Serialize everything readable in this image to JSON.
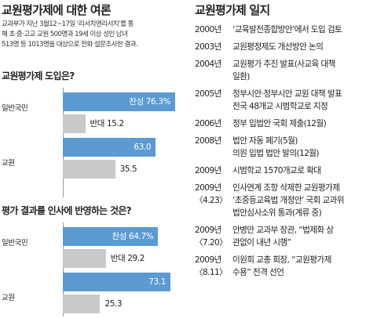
{
  "title": "교원평가제에 대한 여론",
  "intro_lines": [
    "교과부가 지난 3월12~17일 ‘리서치앤리서치’를 통",
    "해 초·중·고교 교원 500명과 19세 이상 성인 남녀",
    "513명 등 1013명을 대상으로 전화 설문조사한 결과."
  ],
  "colors": {
    "yes": "#5b9bd2",
    "no": "#c9c9c9"
  },
  "chart_data": [
    {
      "type": "bar",
      "orientation": "horizontal",
      "title": "교원평가제 도입은?",
      "categories": [
        "일반국민",
        "교원"
      ],
      "series": [
        {
          "name": "찬성",
          "values": [
            76.3,
            63.0
          ],
          "labels": [
            "찬성 76.3%",
            "63.0"
          ]
        },
        {
          "name": "반대",
          "values": [
            15.2,
            35.5
          ],
          "labels": [
            "반대 15.2",
            "35.5"
          ]
        }
      ],
      "unit": "%",
      "xlim": [
        0,
        80
      ]
    },
    {
      "type": "bar",
      "orientation": "horizontal",
      "title": "평가 결과를 인사에 반영하는 것은?",
      "categories": [
        "일반국민",
        "교원"
      ],
      "series": [
        {
          "name": "찬성",
          "values": [
            64.7,
            73.1
          ],
          "labels": [
            "찬성 64.7%",
            "73.1"
          ]
        },
        {
          "name": "반대",
          "values": [
            29.2,
            25.3
          ],
          "labels": [
            "반대 29.2",
            "25.3"
          ]
        }
      ],
      "unit": "%",
      "xlim": [
        0,
        80
      ]
    }
  ],
  "timeline": {
    "title": "교원평가제 일지",
    "entries": [
      {
        "year": "2000년",
        "date": "",
        "lines": [
          "‘교육발전종합방안’에서 도입 검토"
        ]
      },
      {
        "year": "2003년",
        "date": "",
        "lines": [
          "교원평정제도 개선방안 논의"
        ]
      },
      {
        "year": "2004년",
        "date": "",
        "lines": [
          "교원평가 추진 발표(사교육 대책",
          "일환)"
        ]
      },
      {
        "year": "2005년",
        "date": "",
        "lines": [
          "정부시안·정부시안 교원 대책 발표",
          "전국 48개교 시범학교로 지정"
        ]
      },
      {
        "year": "2006년",
        "date": "",
        "lines": [
          "정부 입법안 국회 제출(12월)"
        ]
      },
      {
        "year": "2008년",
        "date": "",
        "lines": [
          "법안 자동 폐기(5월)",
          "의원 입법 법안 발의(12월)"
        ]
      },
      {
        "year": "2009년",
        "date": "",
        "lines": [
          "시범학교 1570개교로 확대"
        ]
      },
      {
        "year": "2009년",
        "date": "〈4.23〉",
        "lines": [
          "인사연계 조항 삭제한 교원평가제",
          "‘초중등교육법 개정안’ 국회 교과위",
          "법안심사소위 통과(계류 중)"
        ]
      },
      {
        "year": "2009년",
        "date": "〈7.20〉",
        "lines": [
          "안병만 교과부 장관, “법제화 상",
          "관없이 내년 시행”"
        ]
      },
      {
        "year": "2009년",
        "date": "〈8.11〉",
        "lines": [
          "이원희 교총 회장, “교원평가제",
          "수용” 전격 선언"
        ]
      }
    ]
  }
}
